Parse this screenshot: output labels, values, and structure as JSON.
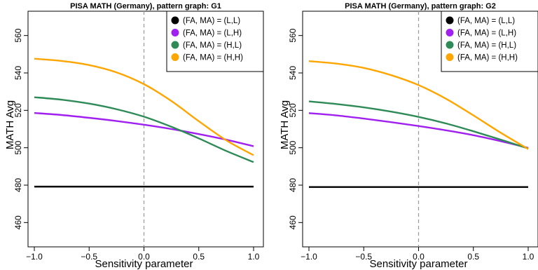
{
  "chart_data": [
    {
      "type": "line",
      "title": "PISA MATH (Germany), pattern graph: G1",
      "xlabel": "Sensitivity parameter",
      "ylabel": "MATH Avg",
      "xlim": [
        -1,
        1
      ],
      "ylim": [
        447,
        573
      ],
      "xticks": [
        -1.0,
        -0.5,
        0.0,
        0.5,
        1.0
      ],
      "xtick_labels": [
        "−1.0",
        "−0.5",
        "0.0",
        "0.5",
        "1.0"
      ],
      "yticks": [
        460,
        480,
        500,
        520,
        540,
        560
      ],
      "ytick_labels": [
        "460",
        "480",
        "500",
        "520",
        "540",
        "560"
      ],
      "reference_line": {
        "x": 0,
        "style": "dashed",
        "color": "#999999"
      },
      "legend_position": "top-right",
      "x": [
        -1.0,
        -0.75,
        -0.5,
        -0.25,
        0.0,
        0.25,
        0.5,
        0.75,
        1.0
      ],
      "series": [
        {
          "name": "(FA, MA) = (L,L)",
          "color": "#000000",
          "values": [
            479.2,
            479.2,
            479.2,
            479.2,
            479.2,
            479.2,
            479.2,
            479.2,
            479.2
          ]
        },
        {
          "name": "(FA, MA) = (L,H)",
          "color": "#a020f0",
          "values": [
            518.6,
            517.5,
            516.0,
            514.3,
            512.3,
            510.0,
            507.3,
            504.3,
            500.8
          ]
        },
        {
          "name": "(FA, MA) = (H,L)",
          "color": "#2e8b57",
          "values": [
            527.0,
            525.7,
            523.6,
            520.6,
            516.6,
            511.2,
            505.0,
            498.3,
            492.3
          ]
        },
        {
          "name": "(FA, MA) = (H,H)",
          "color": "#ffa500",
          "values": [
            547.6,
            546.4,
            544.2,
            540.3,
            534.0,
            525.0,
            514.2,
            504.0,
            496.0
          ]
        }
      ]
    },
    {
      "type": "line",
      "title": "PISA MATH (Germany), pattern graph: G2",
      "xlabel": "Sensitivity parameter",
      "ylabel": "MATH Avg",
      "xlim": [
        -1,
        1
      ],
      "ylim": [
        447,
        573
      ],
      "xticks": [
        -1.0,
        -0.5,
        0.0,
        0.5,
        1.0
      ],
      "xtick_labels": [
        "−1.0",
        "−0.5",
        "0.0",
        "0.5",
        "1.0"
      ],
      "yticks": [
        460,
        480,
        500,
        520,
        540,
        560
      ],
      "ytick_labels": [
        "460",
        "480",
        "500",
        "520",
        "540",
        "560"
      ],
      "reference_line": {
        "x": 0,
        "style": "dashed",
        "color": "#999999"
      },
      "legend_position": "top-right",
      "x": [
        -1.0,
        -0.75,
        -0.5,
        -0.25,
        0.0,
        0.25,
        0.5,
        0.75,
        1.0
      ],
      "series": [
        {
          "name": "(FA, MA) = (L,L)",
          "color": "#000000",
          "values": [
            479.0,
            479.0,
            479.0,
            479.0,
            479.0,
            479.0,
            479.0,
            479.0,
            479.0
          ]
        },
        {
          "name": "(FA, MA) = (L,H)",
          "color": "#a020f0",
          "values": [
            518.5,
            517.3,
            515.6,
            513.7,
            511.6,
            509.3,
            506.7,
            503.5,
            499.9
          ]
        },
        {
          "name": "(FA, MA) = (H,L)",
          "color": "#2e8b57",
          "values": [
            524.8,
            523.4,
            521.6,
            519.3,
            516.5,
            513.0,
            508.8,
            504.3,
            499.6
          ]
        },
        {
          "name": "(FA, MA) = (H,H)",
          "color": "#ffa500",
          "values": [
            546.3,
            545.0,
            542.7,
            538.8,
            533.5,
            526.2,
            517.3,
            508.0,
            499.3
          ]
        }
      ]
    }
  ]
}
